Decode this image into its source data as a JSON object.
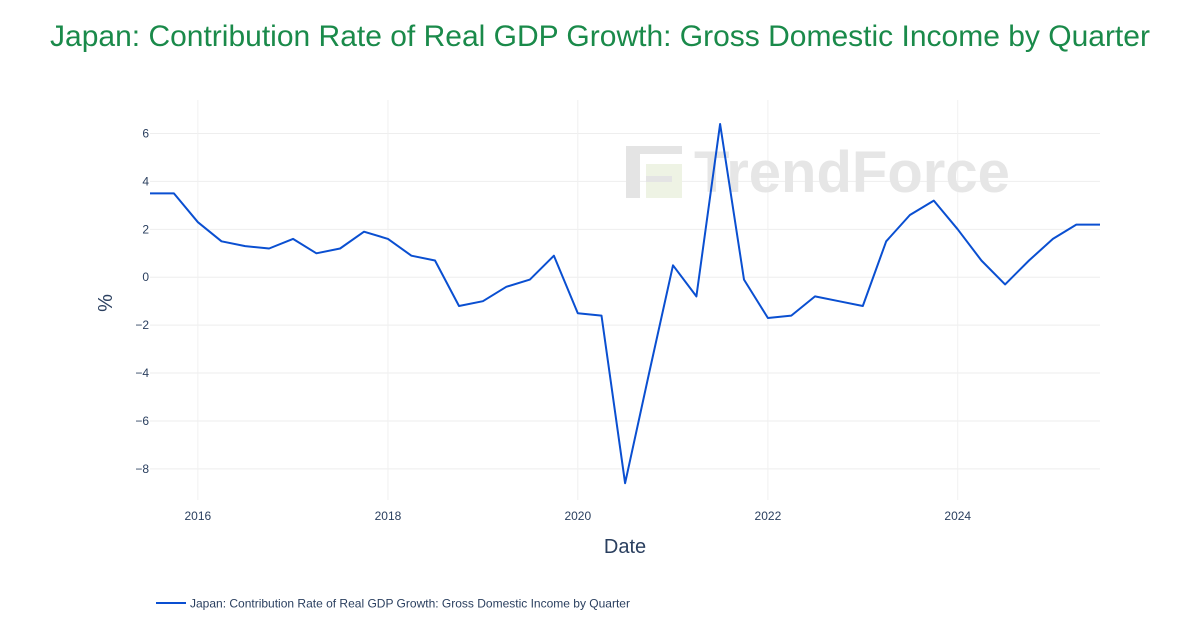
{
  "chart_data": {
    "type": "line",
    "title": "Japan: Contribution Rate of Real GDP Growth: Gross Domestic Income by Quarter",
    "xlabel": "Date",
    "ylabel": "%",
    "x_ticks": [
      "2016",
      "2018",
      "2020",
      "2022",
      "2024"
    ],
    "y_ticks": [
      "6",
      "4",
      "2",
      "0",
      "−2",
      "−4",
      "−6",
      "−8"
    ],
    "ylim": [
      -9.3,
      7.4
    ],
    "xlim": [
      "2015-07-01",
      "2025-07-01"
    ],
    "grid": true,
    "legend_position": "bottom-left",
    "series": [
      {
        "name": "Japan: Contribution Rate of Real GDP Growth: Gross Domestic Income by Quarter",
        "color": "#0a4fd1",
        "x": [
          "2015-07-01",
          "2015-10-01",
          "2016-01-01",
          "2016-04-01",
          "2016-07-01",
          "2016-10-01",
          "2017-01-01",
          "2017-04-01",
          "2017-07-01",
          "2017-10-01",
          "2018-01-01",
          "2018-04-01",
          "2018-07-01",
          "2018-10-01",
          "2019-01-01",
          "2019-04-01",
          "2019-07-01",
          "2019-10-01",
          "2020-01-01",
          "2020-04-01",
          "2020-07-01",
          "2020-10-01",
          "2021-01-01",
          "2021-04-01",
          "2021-07-01",
          "2021-10-01",
          "2022-01-01",
          "2022-04-01",
          "2022-07-01",
          "2022-10-01",
          "2023-01-01",
          "2023-04-01",
          "2023-07-01",
          "2023-10-01",
          "2024-01-01",
          "2024-04-01",
          "2024-07-01",
          "2024-10-01",
          "2025-01-01",
          "2025-04-01",
          "2025-07-01"
        ],
        "values": [
          3.5,
          3.5,
          2.3,
          1.5,
          1.3,
          1.2,
          1.6,
          1.0,
          1.2,
          1.9,
          1.6,
          0.9,
          0.7,
          -1.2,
          -1.0,
          -0.4,
          -0.1,
          0.9,
          -1.5,
          -1.6,
          -8.6,
          -4.0,
          0.5,
          -0.8,
          6.4,
          -0.1,
          -1.7,
          -1.6,
          -0.8,
          -1.0,
          -1.2,
          1.5,
          2.6,
          3.2,
          2.0,
          0.7,
          -0.3,
          0.7,
          1.6,
          2.2,
          2.2
        ]
      }
    ]
  },
  "watermark": {
    "text": "TrendForce"
  }
}
